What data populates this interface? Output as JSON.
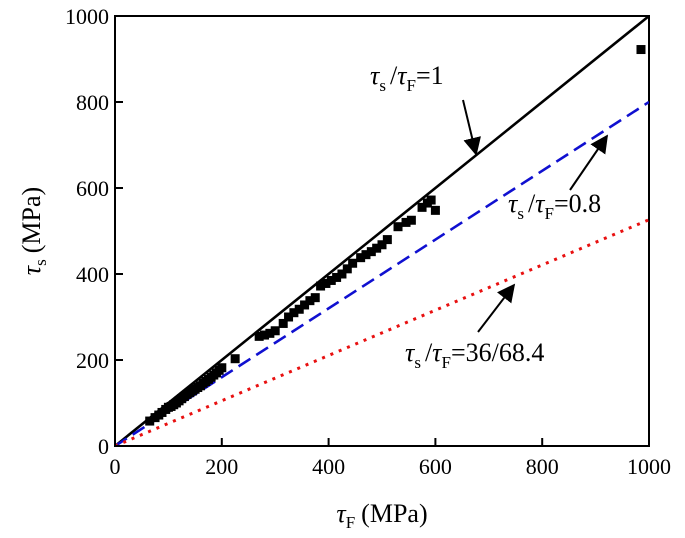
{
  "chart_data": {
    "type": "scatter",
    "xlabel": {
      "symbol": "τ",
      "sub": "F",
      "unit": "(MPa)"
    },
    "ylabel": {
      "symbol": "τ",
      "sub": "s",
      "unit": "(MPa)"
    },
    "xlim": [
      0,
      1000
    ],
    "ylim": [
      0,
      1000
    ],
    "xticks": [
      0,
      200,
      400,
      600,
      800,
      1000
    ],
    "yticks": [
      0,
      200,
      400,
      600,
      800,
      1000
    ],
    "grid": false,
    "series": [
      {
        "marker": "square",
        "color": "#000000",
        "points": [
          [
            65,
            58
          ],
          [
            75,
            66
          ],
          [
            82,
            72
          ],
          [
            88,
            78
          ],
          [
            95,
            85
          ],
          [
            100,
            90
          ],
          [
            105,
            92
          ],
          [
            110,
            96
          ],
          [
            115,
            100
          ],
          [
            120,
            105
          ],
          [
            125,
            110
          ],
          [
            130,
            115
          ],
          [
            135,
            120
          ],
          [
            140,
            124
          ],
          [
            145,
            128
          ],
          [
            150,
            132
          ],
          [
            155,
            136
          ],
          [
            160,
            140
          ],
          [
            165,
            146
          ],
          [
            170,
            150
          ],
          [
            175,
            155
          ],
          [
            180,
            160
          ],
          [
            185,
            165
          ],
          [
            190,
            170
          ],
          [
            195,
            176
          ],
          [
            200,
            182
          ],
          [
            225,
            203
          ],
          [
            270,
            255
          ],
          [
            280,
            258
          ],
          [
            290,
            262
          ],
          [
            300,
            268
          ],
          [
            315,
            285
          ],
          [
            325,
            300
          ],
          [
            335,
            310
          ],
          [
            345,
            318
          ],
          [
            355,
            328
          ],
          [
            365,
            338
          ],
          [
            375,
            345
          ],
          [
            385,
            372
          ],
          [
            395,
            378
          ],
          [
            405,
            385
          ],
          [
            415,
            392
          ],
          [
            425,
            400
          ],
          [
            435,
            412
          ],
          [
            445,
            425
          ],
          [
            460,
            438
          ],
          [
            470,
            445
          ],
          [
            480,
            452
          ],
          [
            490,
            460
          ],
          [
            500,
            468
          ],
          [
            510,
            480
          ],
          [
            530,
            510
          ],
          [
            545,
            520
          ],
          [
            555,
            525
          ],
          [
            575,
            555
          ],
          [
            585,
            565
          ],
          [
            592,
            572
          ],
          [
            600,
            548
          ],
          [
            985,
            922
          ]
        ]
      }
    ],
    "reference_lines": [
      {
        "slope": 1,
        "style": "solid",
        "color": "#000000"
      },
      {
        "slope": 0.8,
        "style": "dashed",
        "color": "#1010d0"
      },
      {
        "slope": 0.5263,
        "style": "dotted",
        "color": "#e81010"
      }
    ],
    "annotations": [
      {
        "num": "τ",
        "num_sub": "s",
        "den": "τ",
        "den_sub": "F",
        "value": "=1"
      },
      {
        "num": "τ",
        "num_sub": "s",
        "den": "τ",
        "den_sub": "F",
        "value": "=0.8"
      },
      {
        "num": "τ",
        "num_sub": "s",
        "den": "τ",
        "den_sub": "F",
        "value": "=36/68.4"
      }
    ]
  }
}
